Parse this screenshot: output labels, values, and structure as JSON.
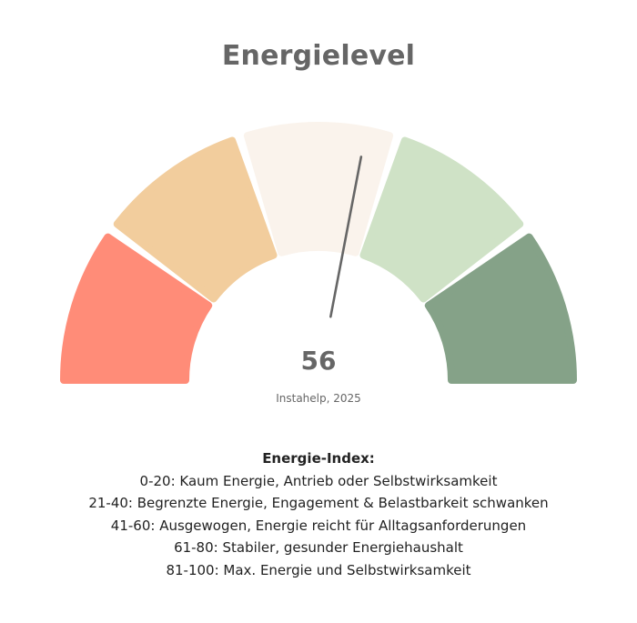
{
  "chart_data": {
    "type": "gauge",
    "title": "Energielevel",
    "value": 56,
    "min": 0,
    "max": 100,
    "source": "Instahelp, 2025",
    "segments": [
      {
        "from": 0,
        "to": 20,
        "color": "#FF8C78"
      },
      {
        "from": 20,
        "to": 40,
        "color": "#F2CD9D"
      },
      {
        "from": 40,
        "to": 60,
        "color": "#FAF3EC"
      },
      {
        "from": 60,
        "to": 80,
        "color": "#CFE2C6"
      },
      {
        "from": 80,
        "to": 100,
        "color": "#85A288"
      }
    ],
    "needle_color": "#666666",
    "legend": {
      "title": "Energie-Index:",
      "items": [
        "0-20: Kaum Energie, Antrieb oder Selbstwirksamkeit",
        "21-40: Begrenzte Energie, Engagement & Belastbarkeit schwanken",
        "41-60: Ausgewogen, Energie reicht für Alltagsanforderungen",
        "61-80: Stabiler, gesunder Energiehaushalt",
        "81-100: Max. Energie und Selbstwirksamkeit"
      ]
    }
  }
}
